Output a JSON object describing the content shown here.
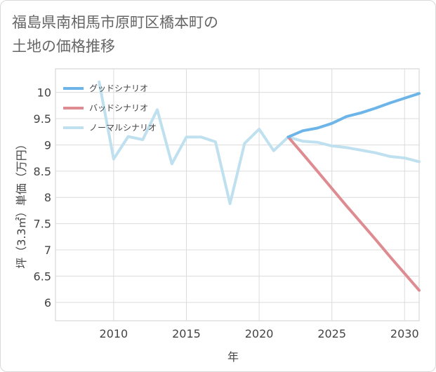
{
  "header": {
    "title_line1": "福島県南相馬市原町区橋本町の",
    "title_line2": "土地の価格推移"
  },
  "chart_data": {
    "type": "line",
    "title": "福島県南相馬市原町区橋本町の土地の価格推移",
    "xlabel": "年",
    "ylabel": "坪（3.3㎡）単価（万円）",
    "xlim": [
      2006,
      2031
    ],
    "ylim": [
      5.65,
      10.45
    ],
    "xticks": [
      2010,
      2015,
      2020,
      2025,
      2030
    ],
    "yticks": [
      6,
      6.5,
      7,
      7.5,
      8,
      8.5,
      9,
      9.5,
      10
    ],
    "grid": true,
    "legend_position": "top-left",
    "series": [
      {
        "name": "グッドシナリオ",
        "color": "#6db5e8",
        "x": [
          2022,
          2023,
          2024,
          2025,
          2026,
          2027,
          2028,
          2029,
          2030,
          2031
        ],
        "values": [
          9.15,
          9.27,
          9.32,
          9.41,
          9.54,
          9.61,
          9.7,
          9.8,
          9.89,
          9.98
        ]
      },
      {
        "name": "バッドシナリオ",
        "color": "#de8b92",
        "x": [
          2022,
          2023,
          2024,
          2025,
          2026,
          2027,
          2028,
          2029,
          2030,
          2031
        ],
        "values": [
          9.15,
          8.83,
          8.5,
          8.17,
          7.84,
          7.52,
          7.2,
          6.87,
          6.55,
          6.23
        ]
      },
      {
        "name": "ノーマルシナリオ",
        "color": "#bfe0ef",
        "x": [
          2009,
          2010,
          2011,
          2012,
          2013,
          2014,
          2015,
          2016,
          2017,
          2018,
          2019,
          2020,
          2021,
          2022,
          2023,
          2024,
          2025,
          2026,
          2027,
          2028,
          2029,
          2030,
          2031
        ],
        "values": [
          10.2,
          8.73,
          9.16,
          9.1,
          9.67,
          8.64,
          9.15,
          9.15,
          9.06,
          7.88,
          9.03,
          9.3,
          8.89,
          9.15,
          9.07,
          9.05,
          8.98,
          8.95,
          8.9,
          8.85,
          8.78,
          8.75,
          8.68
        ]
      }
    ]
  }
}
